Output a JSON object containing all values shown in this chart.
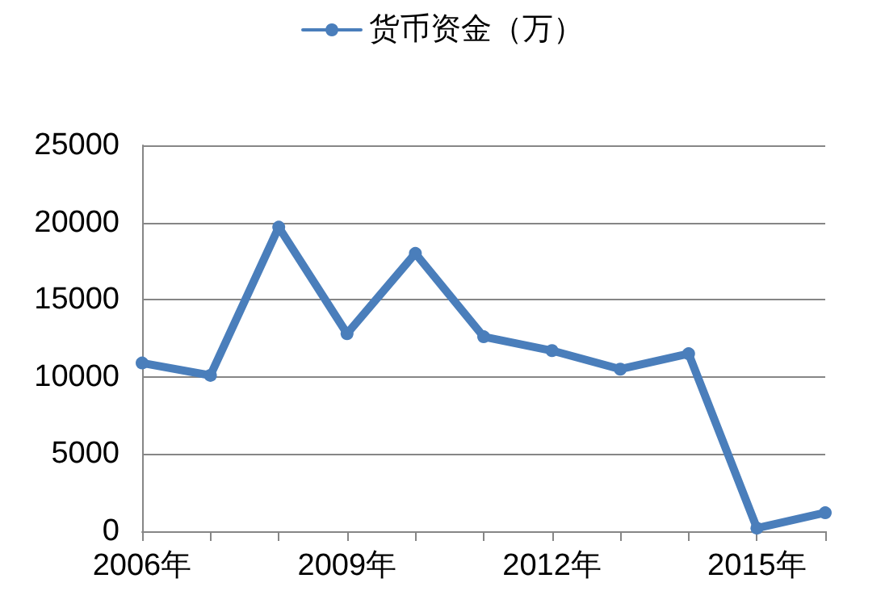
{
  "chart_data": {
    "type": "line",
    "categories": [
      "2006年",
      null,
      null,
      "2009年",
      null,
      null,
      "2012年",
      null,
      null,
      "2015年",
      null
    ],
    "series": [
      {
        "name": "货币资金（万）",
        "color": "#4a7ebb",
        "values": [
          10900,
          10100,
          19700,
          12800,
          18000,
          12600,
          11700,
          10500,
          11500,
          200,
          1200
        ]
      }
    ],
    "ylim": [
      0,
      25000
    ],
    "yticks": [
      0,
      5000,
      10000,
      15000,
      20000,
      25000
    ],
    "grid": "y",
    "legend": "top",
    "marker": "circle",
    "line_style": "solid"
  }
}
